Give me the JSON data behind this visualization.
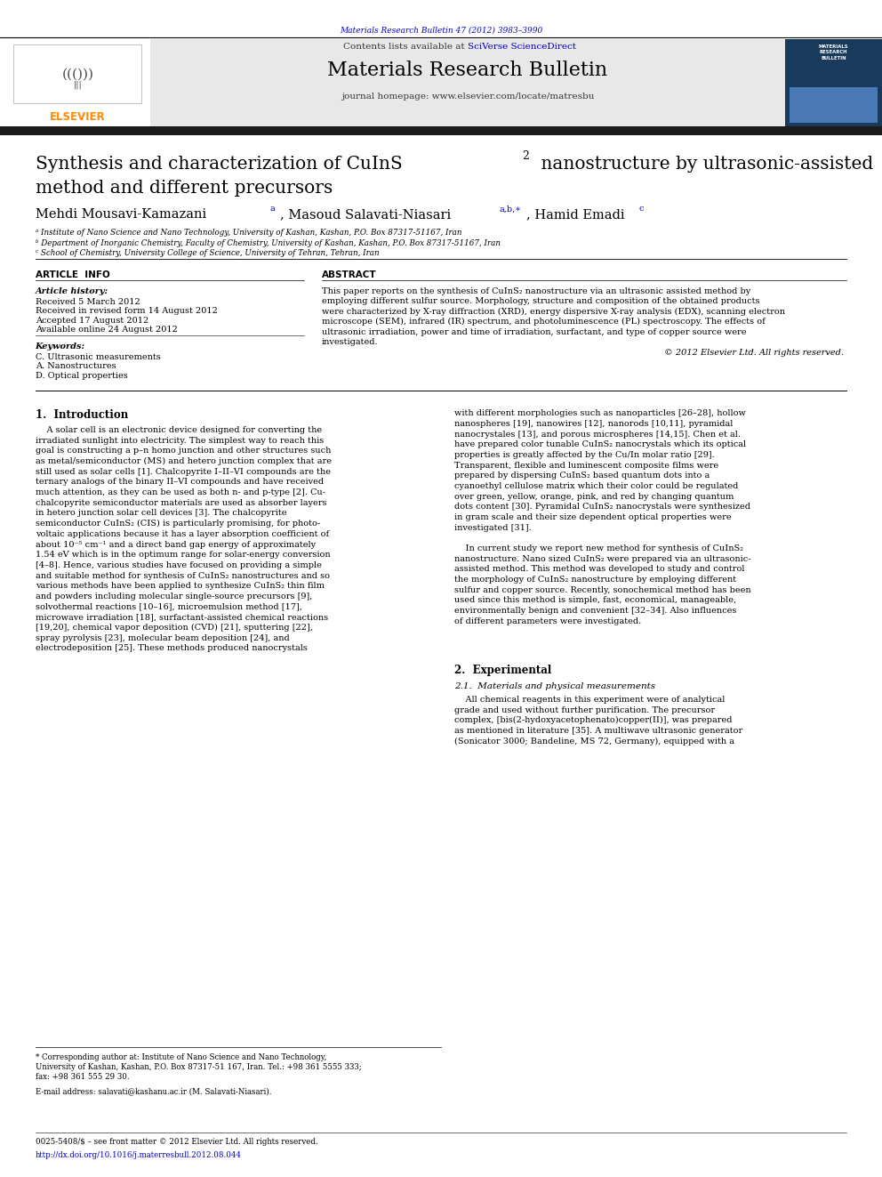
{
  "page_width": 9.92,
  "page_height": 13.23,
  "bg_color": "#ffffff",
  "top_citation": "Materials Research Bulletin 47 (2012) 3983–3990",
  "journal_name": "Materials Research Bulletin",
  "contents_text": "Contents lists available at SciVerse ScienceDirect",
  "journal_url": "journal homepage: www.elsevier.com/locate/matresbu",
  "paper_title": "Synthesis and characterization of CuInS₂ nanostructure by ultrasonic-assisted\nmethod and different precursors",
  "authors": "Mehdi Mousavi-Kamazaniᵃ, Masoud Salavati-Niasariᵃ,ᵇ,*, Hamid Emadiᶜ",
  "affil_a": "ᵃ Institute of Nano Science and Nano Technology, University of Kashan, Kashan, P.O. Box 87317-51167, Iran",
  "affil_b": "ᵇ Department of Inorganic Chemistry, Faculty of Chemistry, University of Kashan, Kashan, P.O. Box 87317-51167, Iran",
  "affil_c": "ᶜ School of Chemistry, University College of Science, University of Tehran, Tehran, Iran",
  "article_info_label": "ARTICLE INFO",
  "abstract_label": "ABSTRACT",
  "article_history_label": "Article history:",
  "received_1": "Received 5 March 2012",
  "received_revised": "Received in revised form 14 August 2012",
  "accepted": "Accepted 17 August 2012",
  "available": "Available online 24 August 2012",
  "keywords_label": "Keywords:",
  "keyword_1": "C. Ultrasonic measurements",
  "keyword_2": "A. Nanostructures",
  "keyword_3": "D. Optical properties",
  "abstract_text": "This paper reports on the synthesis of CuInS₂ nanostructure via an ultrasonic assisted method by employing different sulfur source. Morphology, structure and composition of the obtained products were characterized by X-ray diffraction (XRD), energy dispersive X-ray analysis (EDX), scanning electron microscope (SEM), infrared (IR) spectrum, and photoluminescence (PL) spectroscopy. The effects of ultrasonic irradiation, power and time of irradiation, surfactant, and type of copper source were investigated.",
  "copyright": "© 2012 Elsevier Ltd. All rights reserved.",
  "section1_title": "1.  Introduction",
  "intro_left": "    A solar cell is an electronic device designed for converting the\nirradiated sunlight into electricity. The simplest way to reach this\ngoal is constructing a p–n homo junction and other structures such\nas metal/semiconductor (MS) and hetero junction complex that are\nstill used as solar cells [1]. Chalcopyrite I–II–VI compounds are the\nternary analogs of the binary II–VI compounds and have received\nmuch attention, as they can be used as both n- and p-type [2]. Cu-\nchalcopyrite semiconductor materials are used as absorber layers\nin hetero junction solar cell devices [3]. The chalcopyrite\nsemiconductor CuInS₂ (CIS) is particularly promising, for photo-\nvoltaic applications because it has a layer absorption coefficient of\nabout 10⁻⁵ cm⁻¹ and a direct band gap energy of approximately\n1.54 eV which is in the optimum range for solar-energy conversion\n[4–8]. Hence, various studies have focused on providing a simple\nand suitable method for synthesis of CuInS₂ nanostructures and so\nvarious methods have been applied to synthesize CuInS₂ thin film\nand powders including molecular single-source precursors [9],\nsolvothermal reactions [10–16], microemulsion method [17],\nmicrowave irradiation [18], surfactant-assisted chemical reactions\n[19,20], chemical vapor deposition (CVD) [21], sputtering [22],\nspray pyrolysis [23], molecular beam deposition [24], and\nelectrodeposition [25]. These methods produced nanocrystals",
  "intro_right": "with different morphologies such as nanoparticles [26–28], hollow\nnanospheres [19], nanowires [12], nanorods [10,11], pyramidal\nnanocrystales [13], and porous microspheres [14,15]. Chen et al.\nhave prepared color tunable CuInS₂ nanocrystals which its optical\nproperties is greatly affected by the Cu/In molar ratio [29].\nTransparent, flexible and luminescent composite films were\nprepared by dispersing CuInS₂ based quantum dots into a\ncyanoethyl cellulose matrix which their color could be regulated\nover green, yellow, orange, pink, and red by changing quantum\ndots content [30]. Pyramidal CuInS₂ nanocrystals were synthesized\nin gram scale and their size dependent optical properties were\ninvestigated [31].\n\n    In current study we report new method for synthesis of CuInS₂\nnanostructure. Nano sized CuInS₂ were prepared via an ultrasonic-\nassisted method. This method was developed to study and control\nthe morphology of CuInS₂ nanostructure by employing different\nsulfur and copper source. Recently, sonochemical method has been\nused since this method is simple, fast, economical, manageable,\nenvironmentally benign and convenient [32–34]. Also influences\nof different parameters were investigated.",
  "section2_title": "2.  Experimental",
  "section21_title": "2.1.  Materials and physical measurements",
  "section21_para": "    All chemical reagents in this experiment were of analytical\ngrade and used without further purification. The precursor\ncomplex, [bis(2-hydoxyacetophenato)copper(II)], was prepared\nas mentioned in literature [35]. A multiwave ultrasonic generator\n(Sonicator 3000; Bandeline, MS 72, Germany), equipped with a",
  "footnote_star": "* Corresponding author at: Institute of Nano Science and Nano Technology,\nUniversity of Kashan, Kashan, P.O. Box 87317-51 167, Iran. Tel.: +98 361 5555 333;\nfax: +98 361 555 29 30.",
  "footnote_email": "E-mail address: salavati@kashanu.ac.ir (M. Salavati-Niasari).",
  "bottom_issn": "0025-5408/$ – see front matter © 2012 Elsevier Ltd. All rights reserved.",
  "bottom_doi": "http://dx.doi.org/10.1016/j.materresbull.2012.08.044",
  "header_gray": "#e8e8e8",
  "dark_bar_color": "#1a1a1a",
  "link_blue": "#0000cc",
  "elsevier_orange": "#ff8c00",
  "cover_navy": "#1a3a5c",
  "cover_blue": "#4a7ab5"
}
